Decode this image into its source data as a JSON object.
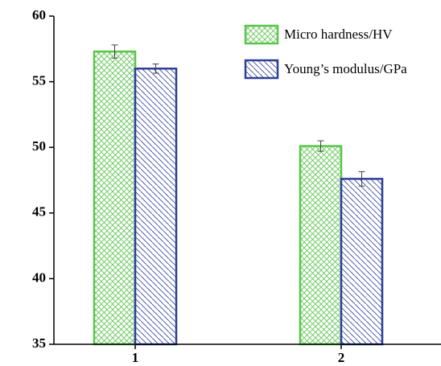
{
  "chart_data": {
    "type": "bar",
    "categories": [
      "1",
      "2"
    ],
    "series": [
      {
        "name": "Micro hardness/HV",
        "color": "#5cc44e",
        "hatch": "cross",
        "values": [
          57.3,
          50.1
        ],
        "errors": [
          0.5,
          0.4
        ]
      },
      {
        "name": "Young’s modulus/GPa",
        "color": "#2e3f96",
        "hatch": "backslash",
        "values": [
          56.0,
          47.6
        ],
        "errors": [
          0.35,
          0.55
        ]
      }
    ],
    "ylim": [
      35,
      60
    ],
    "yticks": [
      35,
      40,
      45,
      50,
      55,
      60
    ],
    "legend": "upper right"
  }
}
